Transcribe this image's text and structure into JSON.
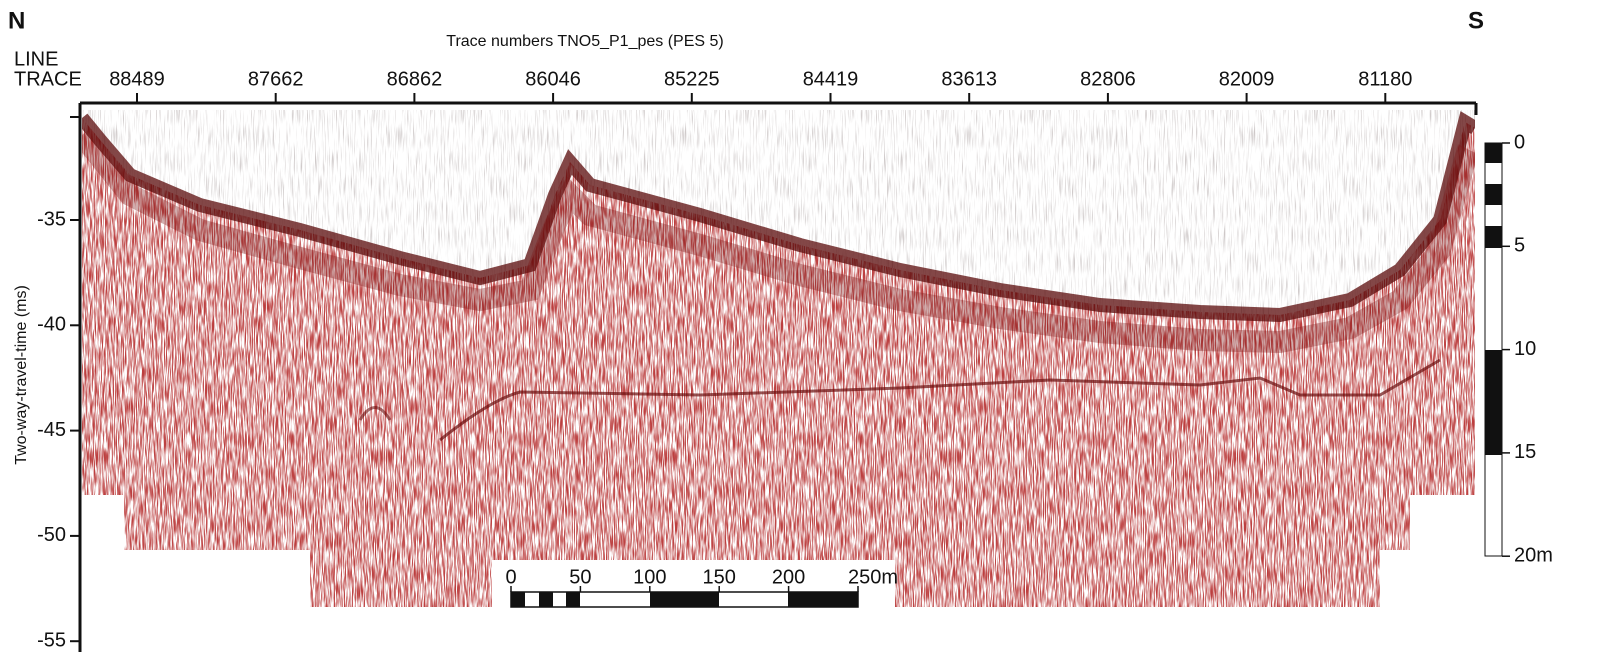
{
  "corner_labels": {
    "left": "N",
    "right": "S"
  },
  "title": "Trace numbers TNO5_P1_pes (PES 5)",
  "row_labels": [
    "LINE",
    "TRACE"
  ],
  "trace_numbers": [
    "88489",
    "87662",
    "86862",
    "86046",
    "85225",
    "84419",
    "83613",
    "82806",
    "82009",
    "81180"
  ],
  "y_axis": {
    "label": "Two-way-travel-time (ms)",
    "ticks": [
      "-35",
      "-40",
      "-45",
      "-50",
      "-55"
    ]
  },
  "depth_scale": {
    "labels": [
      "0",
      "5",
      "10",
      "15",
      "20m"
    ]
  },
  "distance_scale": {
    "labels": [
      "0",
      "50",
      "100",
      "150",
      "200",
      "250m"
    ]
  }
}
